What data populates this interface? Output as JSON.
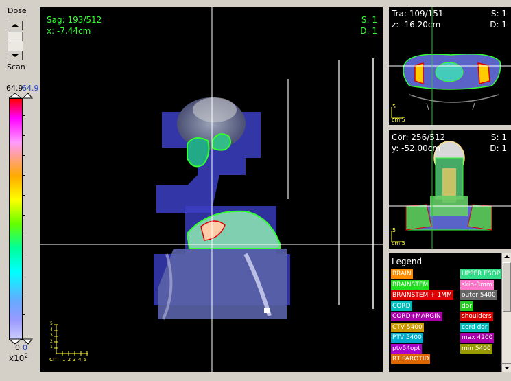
{
  "dose_panel": {
    "title": "Dose",
    "scan_label": "Scan",
    "max_value": "64.9",
    "max_value_alt": "64.9",
    "min_value": "0",
    "min_value_alt": "0",
    "scale_label": "x10",
    "scale_exp": "2"
  },
  "sagittal": {
    "slice": "Sag: 193/512",
    "coord": "x: -7.44cm",
    "s": "S: 1",
    "d": "D: 1",
    "scale_unit": "cm",
    "scale_ticks": "1 2 3 4 5",
    "scale_vticks": [
      "5",
      "4",
      "3",
      "2",
      "1"
    ]
  },
  "transverse": {
    "slice": "Tra: 109/151",
    "coord": "z: -16.20cm",
    "s": "S: 1",
    "d": "D: 1",
    "scale_s": "5",
    "scale_unit": "cm 5"
  },
  "coronal": {
    "slice": "Cor: 256/512",
    "coord": "y: -52.00cm",
    "s": "S: 1",
    "d": "D: 1",
    "scale_s": "5",
    "scale_unit": "cm 5"
  },
  "legend": {
    "title": "Legend",
    "items_left": [
      {
        "label": "BRAIN",
        "color": "#ff8c00"
      },
      {
        "label": "BRAINSTEM",
        "color": "#22dd22"
      },
      {
        "label": "BRAINSTEM + 1MM",
        "color": "#dd0000"
      },
      {
        "label": "CORD",
        "color": "#00bbbb"
      },
      {
        "label": "CORD+MARGIN",
        "color": "#aa00aa"
      },
      {
        "label": "CTV 5400",
        "color": "#cc9900"
      },
      {
        "label": "PTV 5400",
        "color": "#00aacc"
      },
      {
        "label": "ptv54opt",
        "color": "#aa00cc"
      },
      {
        "label": "RT PAROTID",
        "color": "#dd6600"
      }
    ],
    "items_right": [
      {
        "label": "UPPER ESOP",
        "color": "#33dd88"
      },
      {
        "label": "skin-3mm",
        "color": "#ff77cc"
      },
      {
        "label": "outer 5400",
        "color": "#666666"
      },
      {
        "label": "dor",
        "color": "#22cc22"
      },
      {
        "label": "shoulders",
        "color": "#dd0000"
      },
      {
        "label": "cord dor",
        "color": "#00bbbb"
      },
      {
        "label": "max 4200",
        "color": "#aa00aa"
      },
      {
        "label": "min 5400",
        "color": "#999900"
      }
    ]
  }
}
